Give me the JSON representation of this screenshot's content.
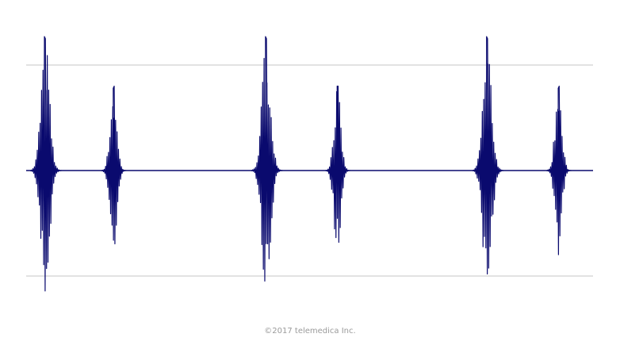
{
  "colors": {
    "background": "#ffffff",
    "waveform": "#0a0a6e",
    "gridline": "#c4c4c4",
    "copyright": "#9a9a9a"
  },
  "footer": {
    "copyright": "©2017 telemedica Inc."
  },
  "chart_data": {
    "type": "line",
    "title": "",
    "xlabel": "",
    "ylabel": "",
    "grid": "horizontal",
    "ylim": [
      -1.3,
      1.3
    ],
    "reference_lines": [
      1,
      0,
      -1
    ],
    "series": [
      {
        "values_note": "",
        "bursts": [
          {
            "center": 0.035,
            "peak_up": 1.27,
            "peak_down": -1.25,
            "kind": "S1"
          },
          {
            "center": 0.155,
            "peak_up": 0.78,
            "peak_down": -0.8,
            "kind": "S2"
          },
          {
            "center": 0.425,
            "peak_up": 1.27,
            "peak_down": -1.25,
            "kind": "S1"
          },
          {
            "center": 0.55,
            "peak_up": 0.8,
            "peak_down": -0.8,
            "kind": "S2"
          },
          {
            "center": 0.815,
            "peak_up": 1.27,
            "peak_down": -1.25,
            "kind": "S1"
          },
          {
            "center": 0.94,
            "peak_up": 0.78,
            "peak_down": -0.8,
            "kind": "S2"
          }
        ]
      }
    ]
  }
}
